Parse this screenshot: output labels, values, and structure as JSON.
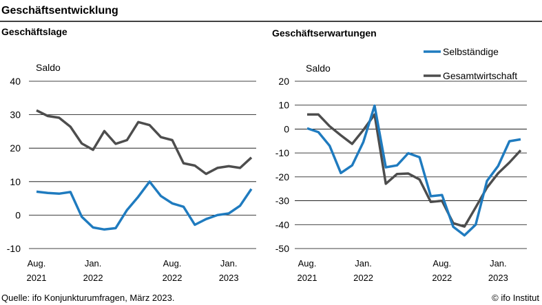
{
  "figure": {
    "title": "Geschäftsentwicklung",
    "source": "Quelle: ifo Konjunkturumfragen, März 2023.",
    "credit": "© ifo Institut"
  },
  "colors": {
    "selbstaendige": "#1f7bbf",
    "gesamtwirtschaft": "#4d4d4d",
    "grid": "#000000"
  },
  "legend": {
    "placement": "top-right",
    "items": [
      "Selbständige",
      "Gesamtwirtschaft"
    ]
  },
  "chart_data": [
    {
      "type": "line",
      "title": "Geschäftslage",
      "ylabel": "Saldo",
      "ylim": [
        -10,
        40
      ],
      "yticks": [
        -10,
        0,
        10,
        20,
        30,
        40
      ],
      "grid": true,
      "x_tick_labels": [
        {
          "line1": "Aug.",
          "line2": "2021"
        },
        {
          "line1": "Jan.",
          "line2": "2022"
        },
        {
          "line1": "Aug.",
          "line2": "2022"
        },
        {
          "line1": "Jan.",
          "line2": "2023"
        }
      ],
      "x": [
        "2021-08",
        "2021-09",
        "2021-10",
        "2021-11",
        "2021-12",
        "2022-01",
        "2022-02",
        "2022-03",
        "2022-04",
        "2022-05",
        "2022-06",
        "2022-07",
        "2022-08",
        "2022-09",
        "2022-10",
        "2022-11",
        "2022-12",
        "2023-01",
        "2023-02",
        "2023-03"
      ],
      "series": [
        {
          "name": "Selbständige",
          "values": [
            7.0,
            6.6,
            6.4,
            6.9,
            -0.5,
            -3.7,
            -4.3,
            -3.9,
            1.5,
            5.5,
            10.0,
            5.7,
            3.5,
            2.5,
            -2.9,
            -1.2,
            0.0,
            0.5,
            2.8,
            7.8
          ]
        },
        {
          "name": "Gesamtwirtschaft",
          "values": [
            31.3,
            29.6,
            29.1,
            26.4,
            21.4,
            19.5,
            25.1,
            21.3,
            22.4,
            27.8,
            26.9,
            23.3,
            22.4,
            15.5,
            14.8,
            12.3,
            14.1,
            14.6,
            14.1,
            17.2
          ]
        }
      ]
    },
    {
      "type": "line",
      "title": "Geschäftserwartungen",
      "ylabel": "Saldo",
      "ylim": [
        -50,
        20
      ],
      "yticks": [
        -50,
        -40,
        -30,
        -20,
        -10,
        0,
        10,
        20
      ],
      "grid": true,
      "x_tick_labels": [
        {
          "line1": "Aug.",
          "line2": "2021"
        },
        {
          "line1": "Jan.",
          "line2": "2022"
        },
        {
          "line1": "Aug.",
          "line2": "2022"
        },
        {
          "line1": "Jan.",
          "line2": "2023"
        }
      ],
      "x": [
        "2021-08",
        "2021-09",
        "2021-10",
        "2021-11",
        "2021-12",
        "2022-01",
        "2022-02",
        "2022-03",
        "2022-04",
        "2022-05",
        "2022-06",
        "2022-07",
        "2022-08",
        "2022-09",
        "2022-10",
        "2022-11",
        "2022-12",
        "2023-01",
        "2023-02",
        "2023-03"
      ],
      "series": [
        {
          "name": "Selbständige",
          "values": [
            0.3,
            -1.3,
            -7.0,
            -18.4,
            -15.2,
            -5.4,
            9.8,
            -16.0,
            -15.2,
            -10.1,
            -11.8,
            -28.1,
            -27.6,
            -40.9,
            -44.5,
            -40.0,
            -21.7,
            -15.4,
            -5.1,
            -4.3
          ]
        },
        {
          "name": "Gesamtwirtschaft",
          "values": [
            6.1,
            6.1,
            1.2,
            -2.6,
            -6.2,
            -0.4,
            6.1,
            -22.9,
            -18.8,
            -18.6,
            -21.1,
            -30.5,
            -30.0,
            -39.4,
            -40.8,
            -32.8,
            -24.5,
            -18.5,
            -14.0,
            -8.9
          ]
        }
      ]
    }
  ]
}
